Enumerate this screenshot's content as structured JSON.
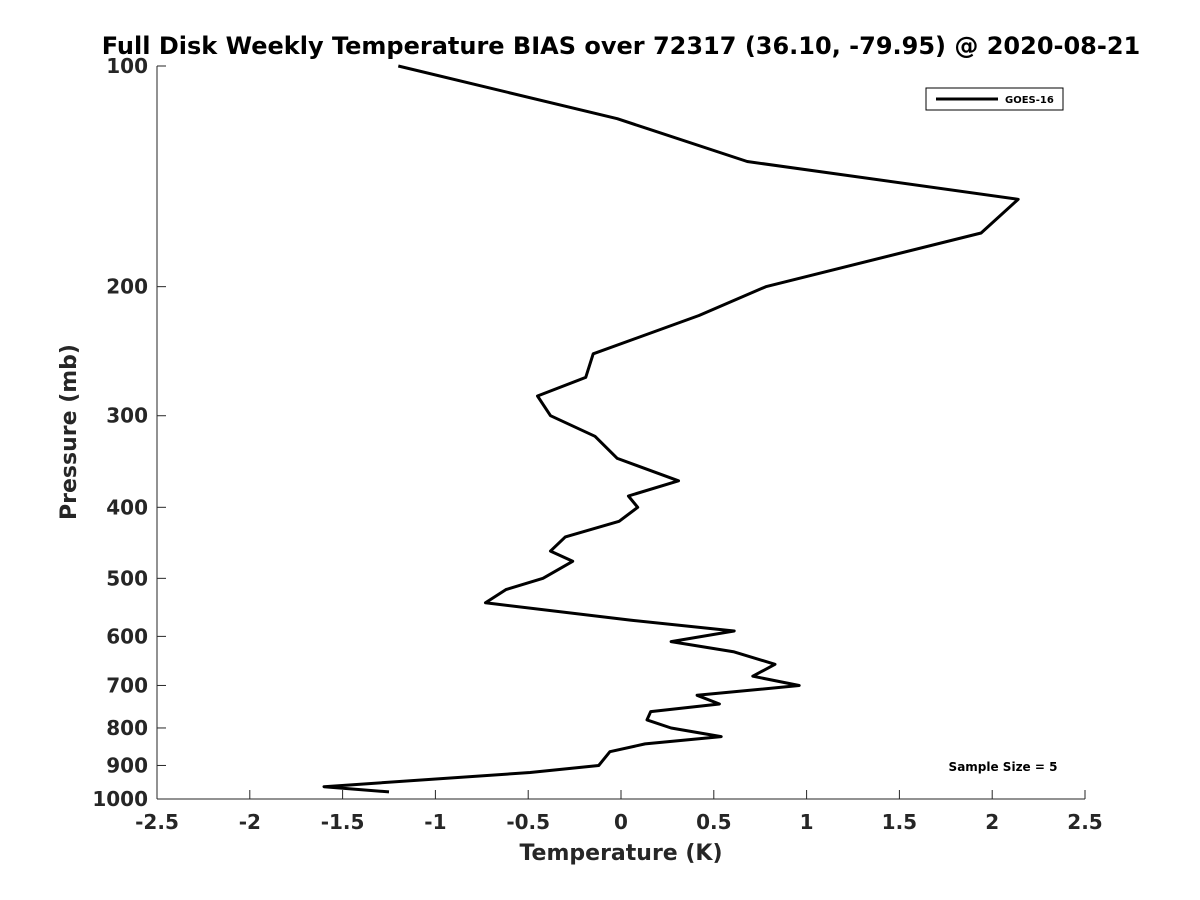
{
  "chart_data": {
    "type": "line",
    "title": "Full Disk Weekly Temperature BIAS over 72317 (36.10, -79.95) @ 2020-08-21",
    "xlabel": "Temperature (K)",
    "ylabel": "Pressure (mb)",
    "xlim": [
      -2.5,
      2.5
    ],
    "ylim": [
      100,
      1000
    ],
    "y_scale": "log",
    "y_reversed": true,
    "x_ticks": [
      "-2.5",
      "-2",
      "-1.5",
      "-1",
      "-0.5",
      "0",
      "0.5",
      "1",
      "1.5",
      "2",
      "2.5"
    ],
    "x_tick_values": [
      -2.5,
      -2,
      -1.5,
      -1,
      -0.5,
      0,
      0.5,
      1,
      1.5,
      2,
      2.5
    ],
    "y_ticks": [
      "100",
      "200",
      "300",
      "400",
      "500",
      "600",
      "700",
      "800",
      "900",
      "1000"
    ],
    "y_tick_values": [
      100,
      200,
      300,
      400,
      500,
      600,
      700,
      800,
      900,
      1000
    ],
    "grid": false,
    "legend_position": "top-right",
    "annotation": "Sample Size = 5",
    "series": [
      {
        "name": "GOES-16",
        "color": "#000000",
        "points": [
          {
            "x": -1.2,
            "y": 100
          },
          {
            "x": -0.02,
            "y": 118
          },
          {
            "x": 0.68,
            "y": 135
          },
          {
            "x": 2.14,
            "y": 152
          },
          {
            "x": 1.94,
            "y": 169
          },
          {
            "x": 0.78,
            "y": 200
          },
          {
            "x": 0.42,
            "y": 219
          },
          {
            "x": -0.15,
            "y": 247
          },
          {
            "x": -0.19,
            "y": 266
          },
          {
            "x": -0.45,
            "y": 282
          },
          {
            "x": -0.38,
            "y": 300
          },
          {
            "x": -0.14,
            "y": 320
          },
          {
            "x": -0.02,
            "y": 343
          },
          {
            "x": 0.31,
            "y": 368
          },
          {
            "x": 0.04,
            "y": 386
          },
          {
            "x": 0.09,
            "y": 400
          },
          {
            "x": -0.01,
            "y": 418
          },
          {
            "x": -0.3,
            "y": 439
          },
          {
            "x": -0.38,
            "y": 459
          },
          {
            "x": -0.26,
            "y": 474
          },
          {
            "x": -0.42,
            "y": 500
          },
          {
            "x": -0.62,
            "y": 518
          },
          {
            "x": -0.73,
            "y": 540
          },
          {
            "x": 0.05,
            "y": 570
          },
          {
            "x": 0.61,
            "y": 590
          },
          {
            "x": 0.27,
            "y": 610
          },
          {
            "x": 0.61,
            "y": 630
          },
          {
            "x": 0.83,
            "y": 655
          },
          {
            "x": 0.71,
            "y": 680
          },
          {
            "x": 0.96,
            "y": 700
          },
          {
            "x": 0.41,
            "y": 722
          },
          {
            "x": 0.53,
            "y": 742
          },
          {
            "x": 0.16,
            "y": 760
          },
          {
            "x": 0.14,
            "y": 780
          },
          {
            "x": 0.27,
            "y": 800
          },
          {
            "x": 0.54,
            "y": 822
          },
          {
            "x": 0.13,
            "y": 841
          },
          {
            "x": -0.06,
            "y": 862
          },
          {
            "x": -0.12,
            "y": 900
          },
          {
            "x": -0.49,
            "y": 920
          },
          {
            "x": -1.6,
            "y": 962
          },
          {
            "x": -1.25,
            "y": 978
          }
        ]
      }
    ]
  }
}
